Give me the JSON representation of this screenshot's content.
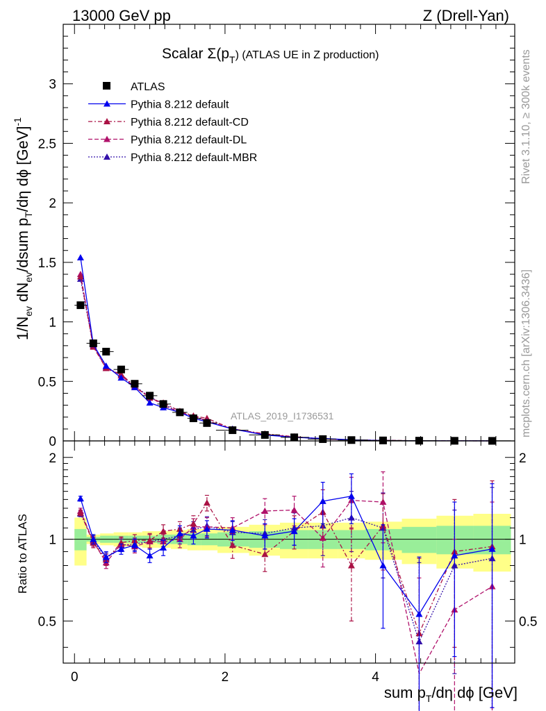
{
  "header": {
    "left": "13000 GeV pp",
    "right": "Z (Drell-Yan)"
  },
  "side_labels": {
    "rivet": "Rivet 3.1.10, ≥ 300k events",
    "mcplots": "mcplots.cern.ch [arXiv:1306.3436]"
  },
  "chart_data": {
    "type": "scatter",
    "title": "Scalar Σ(pT) (ATLAS UE in Z production)",
    "title_main": "Scalar Σ(p",
    "title_sub": "T",
    "title_tail": ") (ATLAS UE in Z production)",
    "watermark": "ATLAS_2019_I1736531",
    "xlabel": "sum pT/dη dϕ [GeV]",
    "ylabel": "1/Nev dNev/dsum pT/dη dϕ [GeV]^-1",
    "ratio_ylabel": "Ratio to ATLAS",
    "xlim": [
      -0.15,
      5.85
    ],
    "ylim": [
      0,
      3.5
    ],
    "ratio_ylim": [
      0.35,
      2.3
    ],
    "xticks": [
      0,
      2,
      4
    ],
    "yticks": [
      0,
      0.5,
      1,
      1.5,
      2,
      2.5,
      3
    ],
    "ratio_yticks": [
      0.5,
      1,
      2
    ],
    "legend": [
      {
        "label": "ATLAS",
        "color": "#000000",
        "marker": "square",
        "line": "none"
      },
      {
        "label": "Pythia 8.212 default",
        "color": "#0000ee",
        "marker": "triangle",
        "line": "solid"
      },
      {
        "label": "Pythia 8.212 default-CD",
        "color": "#aa1144",
        "marker": "triangle",
        "line": "dashdot"
      },
      {
        "label": "Pythia 8.212 default-DL",
        "color": "#b0106a",
        "marker": "triangle",
        "line": "dashed"
      },
      {
        "label": "Pythia 8.212 default-MBR",
        "color": "#3311aa",
        "marker": "triangle",
        "line": "dotted"
      }
    ],
    "x": [
      0.08,
      0.25,
      0.42,
      0.62,
      0.8,
      1.0,
      1.18,
      1.4,
      1.58,
      1.76,
      2.1,
      2.53,
      2.92,
      3.3,
      3.68,
      4.1,
      4.58,
      5.05,
      5.55
    ],
    "xerr_lo": [
      0.08,
      0.09,
      0.08,
      0.1,
      0.08,
      0.1,
      0.08,
      0.1,
      0.08,
      0.1,
      0.22,
      0.21,
      0.18,
      0.2,
      0.18,
      0.25,
      0.23,
      0.25,
      0.25
    ],
    "xerr_hi": [
      0.09,
      0.09,
      0.1,
      0.1,
      0.1,
      0.1,
      0.1,
      0.1,
      0.1,
      0.14,
      0.21,
      0.2,
      0.2,
      0.18,
      0.22,
      0.25,
      0.23,
      0.25,
      0.25
    ],
    "atlas": [
      1.14,
      0.82,
      0.75,
      0.6,
      0.48,
      0.38,
      0.31,
      0.24,
      0.19,
      0.15,
      0.09,
      0.05,
      0.03,
      0.015,
      0.007,
      0.004,
      0.002,
      0.001,
      0.0005
    ],
    "series": [
      {
        "name": "Pythia 8.212 default",
        "values": [
          1.54,
          0.81,
          0.63,
          0.53,
          0.45,
          0.32,
          0.28,
          0.24,
          0.19,
          0.16,
          0.1,
          0.05,
          0.03,
          0.02,
          0.009,
          0.003,
          0.001,
          0.0009,
          0.0005
        ],
        "ratio": [
          1.41,
          1.0,
          0.86,
          0.92,
          0.95,
          0.87,
          0.93,
          1.05,
          1.03,
          1.09,
          1.08,
          1.03,
          1.07,
          1.38,
          1.44,
          0.8,
          0.53,
          0.87,
          0.92
        ],
        "ratio_err": [
          0.03,
          0.04,
          0.04,
          0.04,
          0.05,
          0.05,
          0.06,
          0.07,
          0.07,
          0.08,
          0.09,
          0.11,
          0.12,
          0.24,
          0.3,
          0.33,
          0.33,
          0.5,
          0.68
        ]
      },
      {
        "name": "Pythia 8.212 default-CD",
        "values": [
          1.38,
          0.79,
          0.61,
          0.56,
          0.46,
          0.36,
          0.32,
          0.25,
          0.21,
          0.19,
          0.1,
          0.06,
          0.035,
          0.018,
          0.008,
          0.004,
          0.0015,
          0.0009,
          0.0005
        ],
        "ratio": [
          1.25,
          0.97,
          0.84,
          0.97,
          0.99,
          0.99,
          1.07,
          1.09,
          1.14,
          1.36,
          0.95,
          0.88,
          1.07,
          1.26,
          0.8,
          1.12,
          0.45,
          0.9,
          0.94
        ],
        "ratio_err": [
          0.03,
          0.04,
          0.04,
          0.05,
          0.05,
          0.06,
          0.06,
          0.07,
          0.08,
          0.09,
          0.1,
          0.12,
          0.15,
          0.26,
          0.3,
          0.35,
          0.4,
          0.5,
          0.7
        ]
      },
      {
        "name": "Pythia 8.212 default-DL",
        "values": [
          1.4,
          0.8,
          0.61,
          0.55,
          0.45,
          0.37,
          0.3,
          0.24,
          0.21,
          0.17,
          0.1,
          0.055,
          0.035,
          0.016,
          0.008,
          0.005,
          0.0007,
          0.0007,
          0.0003
        ],
        "ratio": [
          1.27,
          0.98,
          0.82,
          0.96,
          0.94,
          0.98,
          0.98,
          1.0,
          1.11,
          1.11,
          1.1,
          1.27,
          1.28,
          1.01,
          1.39,
          1.37,
          0.32,
          0.55,
          0.67
        ],
        "ratio_err": [
          0.03,
          0.04,
          0.04,
          0.05,
          0.05,
          0.06,
          0.06,
          0.07,
          0.08,
          0.09,
          0.1,
          0.14,
          0.16,
          0.22,
          0.3,
          0.4,
          0.4,
          0.45,
          0.7
        ]
      },
      {
        "name": "Pythia 8.212 default-MBR",
        "values": [
          1.36,
          0.8,
          0.62,
          0.55,
          0.46,
          0.37,
          0.31,
          0.24,
          0.2,
          0.17,
          0.1,
          0.055,
          0.032,
          0.017,
          0.008,
          0.004,
          0.001,
          0.0008,
          0.0004
        ],
        "ratio": [
          1.24,
          0.99,
          0.85,
          0.95,
          0.96,
          0.98,
          1.0,
          1.03,
          1.08,
          1.12,
          1.06,
          1.05,
          1.1,
          1.12,
          1.2,
          1.1,
          0.42,
          0.8,
          0.85
        ],
        "ratio_err": [
          0.03,
          0.04,
          0.04,
          0.05,
          0.05,
          0.06,
          0.06,
          0.07,
          0.08,
          0.09,
          0.1,
          0.13,
          0.15,
          0.25,
          0.3,
          0.38,
          0.4,
          0.48,
          0.7
        ]
      }
    ],
    "band_x_edges": [
      0.0,
      0.16,
      0.34,
      0.52,
      0.72,
      0.9,
      1.1,
      1.28,
      1.5,
      1.68,
      1.9,
      2.32,
      2.73,
      3.1,
      3.5,
      3.86,
      4.35,
      4.81,
      5.3,
      5.8
    ],
    "band_green_lo": [
      0.91,
      0.98,
      0.97,
      0.97,
      0.97,
      0.97,
      0.96,
      0.96,
      0.95,
      0.95,
      0.94,
      0.93,
      0.92,
      0.92,
      0.92,
      0.91,
      0.89,
      0.88,
      0.88
    ],
    "band_green_hi": [
      1.09,
      1.02,
      1.03,
      1.03,
      1.03,
      1.03,
      1.04,
      1.04,
      1.05,
      1.05,
      1.06,
      1.07,
      1.08,
      1.08,
      1.08,
      1.09,
      1.11,
      1.12,
      1.12
    ],
    "band_yellow_lo": [
      0.8,
      0.96,
      0.95,
      0.94,
      0.94,
      0.93,
      0.93,
      0.92,
      0.91,
      0.91,
      0.89,
      0.87,
      0.85,
      0.85,
      0.85,
      0.84,
      0.81,
      0.78,
      0.76
    ],
    "band_yellow_hi": [
      1.2,
      1.04,
      1.05,
      1.06,
      1.06,
      1.07,
      1.07,
      1.08,
      1.09,
      1.09,
      1.11,
      1.13,
      1.15,
      1.15,
      1.15,
      1.16,
      1.19,
      1.22,
      1.24
    ]
  }
}
